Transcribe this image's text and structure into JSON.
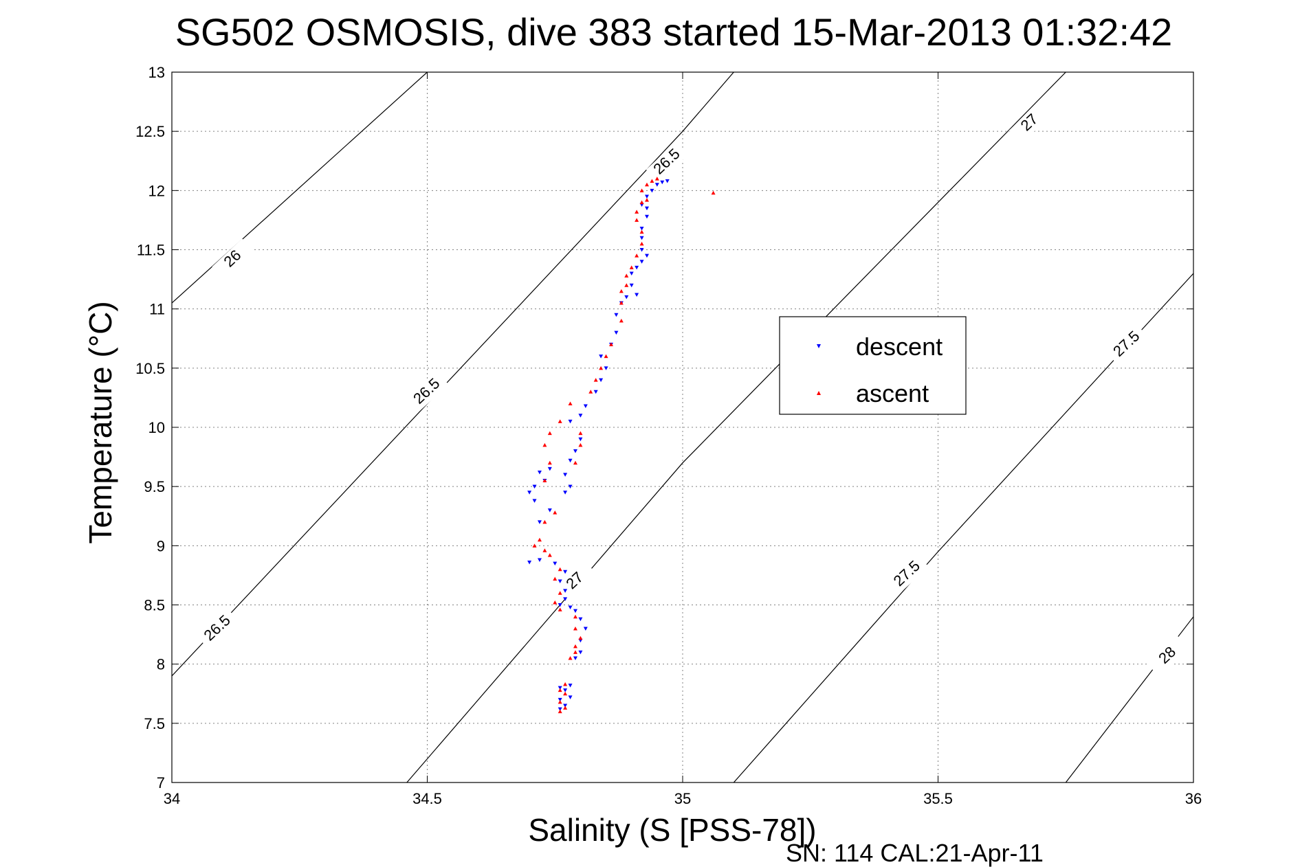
{
  "chart_data": {
    "type": "scatter",
    "title": "SG502 OSMOSIS, dive 383 started 15-Mar-2013 01:32:42",
    "xlabel": "Salinity (S [PSS-78])",
    "ylabel": "Temperature (°C)",
    "footer": "SN: 114  CAL:21-Apr-11",
    "xlim": [
      34,
      36
    ],
    "ylim": [
      7,
      13
    ],
    "xticks": [
      "34",
      "34.5",
      "35",
      "35.5",
      "36"
    ],
    "yticks": [
      "7",
      "7.5",
      "8",
      "8.5",
      "9",
      "9.5",
      "10",
      "10.5",
      "11",
      "11.5",
      "12",
      "12.5",
      "13"
    ],
    "grid": true,
    "legend_position": "center-right",
    "density_contours": [
      {
        "level": "26",
        "points": [
          [
            34.0,
            11.05
          ],
          [
            34.5,
            13.0
          ]
        ]
      },
      {
        "level": "26.5",
        "points": [
          [
            34.0,
            7.9
          ],
          [
            35.0,
            12.5
          ],
          [
            35.1,
            13.0
          ]
        ]
      },
      {
        "level": "27",
        "points": [
          [
            34.46,
            7.0
          ],
          [
            35.0,
            9.7
          ],
          [
            35.5,
            11.9
          ],
          [
            35.75,
            13.0
          ]
        ]
      },
      {
        "level": "27.5",
        "points": [
          [
            35.1,
            7.0
          ],
          [
            35.5,
            8.95
          ],
          [
            36.0,
            11.3
          ]
        ]
      },
      {
        "level": "28",
        "points": [
          [
            35.75,
            7.0
          ],
          [
            36.0,
            8.4
          ]
        ]
      }
    ],
    "contour_labels": [
      {
        "text": "26",
        "x": 34.12,
        "y": 11.42
      },
      {
        "text": "26.5",
        "x": 34.09,
        "y": 8.3
      },
      {
        "text": "26.5",
        "x": 34.5,
        "y": 10.3
      },
      {
        "text": "26.5",
        "x": 34.97,
        "y": 12.24
      },
      {
        "text": "27",
        "x": 34.79,
        "y": 8.7
      },
      {
        "text": "27",
        "x": 35.68,
        "y": 12.57
      },
      {
        "text": "27.5",
        "x": 35.44,
        "y": 8.76
      },
      {
        "text": "27.5",
        "x": 35.87,
        "y": 10.7
      },
      {
        "text": "28",
        "x": 35.95,
        "y": 8.07
      }
    ],
    "series": [
      {
        "name": "descent",
        "color": "#0000ff",
        "marker": "triangle-down",
        "points": [
          [
            34.76,
            7.62
          ],
          [
            34.77,
            7.65
          ],
          [
            34.76,
            7.7
          ],
          [
            34.78,
            7.72
          ],
          [
            34.77,
            7.78
          ],
          [
            34.76,
            7.8
          ],
          [
            34.78,
            7.82
          ],
          [
            34.79,
            8.05
          ],
          [
            34.8,
            8.1
          ],
          [
            34.8,
            8.2
          ],
          [
            34.81,
            8.3
          ],
          [
            34.8,
            8.38
          ],
          [
            34.79,
            8.45
          ],
          [
            34.78,
            8.48
          ],
          [
            34.76,
            8.5
          ],
          [
            34.77,
            8.55
          ],
          [
            34.77,
            8.62
          ],
          [
            34.76,
            8.7
          ],
          [
            34.77,
            8.78
          ],
          [
            34.75,
            8.85
          ],
          [
            34.72,
            8.88
          ],
          [
            34.7,
            8.86
          ],
          [
            34.72,
            9.2
          ],
          [
            34.74,
            9.3
          ],
          [
            34.71,
            9.38
          ],
          [
            34.7,
            9.45
          ],
          [
            34.71,
            9.5
          ],
          [
            34.73,
            9.55
          ],
          [
            34.72,
            9.62
          ],
          [
            34.74,
            9.65
          ],
          [
            34.77,
            9.45
          ],
          [
            34.78,
            9.5
          ],
          [
            34.77,
            9.6
          ],
          [
            34.78,
            9.72
          ],
          [
            34.79,
            9.8
          ],
          [
            34.8,
            9.9
          ],
          [
            34.78,
            10.05
          ],
          [
            34.8,
            10.1
          ],
          [
            34.81,
            10.18
          ],
          [
            34.83,
            10.3
          ],
          [
            34.84,
            10.4
          ],
          [
            34.85,
            10.5
          ],
          [
            34.84,
            10.6
          ],
          [
            34.86,
            10.7
          ],
          [
            34.87,
            10.8
          ],
          [
            34.87,
            10.95
          ],
          [
            34.88,
            11.05
          ],
          [
            34.89,
            11.1
          ],
          [
            34.91,
            11.12
          ],
          [
            34.9,
            11.2
          ],
          [
            34.9,
            11.3
          ],
          [
            34.91,
            11.35
          ],
          [
            34.92,
            11.4
          ],
          [
            34.93,
            11.45
          ],
          [
            34.92,
            11.5
          ],
          [
            34.92,
            11.6
          ],
          [
            34.92,
            11.68
          ],
          [
            34.93,
            11.78
          ],
          [
            34.93,
            11.85
          ],
          [
            34.92,
            11.88
          ],
          [
            34.93,
            11.95
          ],
          [
            34.94,
            12.0
          ],
          [
            34.95,
            12.05
          ],
          [
            34.96,
            12.07
          ],
          [
            34.97,
            12.08
          ]
        ]
      },
      {
        "name": "ascent",
        "color": "#ff0000",
        "marker": "triangle-up",
        "points": [
          [
            34.76,
            7.6
          ],
          [
            34.77,
            7.63
          ],
          [
            34.76,
            7.68
          ],
          [
            34.77,
            7.75
          ],
          [
            34.76,
            7.78
          ],
          [
            34.77,
            7.83
          ],
          [
            34.78,
            8.05
          ],
          [
            34.79,
            8.1
          ],
          [
            34.79,
            8.15
          ],
          [
            34.8,
            8.22
          ],
          [
            34.79,
            8.3
          ],
          [
            34.79,
            8.4
          ],
          [
            34.76,
            8.46
          ],
          [
            34.75,
            8.52
          ],
          [
            34.76,
            8.6
          ],
          [
            34.75,
            8.72
          ],
          [
            34.76,
            8.8
          ],
          [
            34.74,
            8.92
          ],
          [
            34.73,
            8.96
          ],
          [
            34.71,
            9.0
          ],
          [
            34.72,
            9.05
          ],
          [
            34.73,
            9.2
          ],
          [
            34.75,
            9.28
          ],
          [
            34.73,
            9.55
          ],
          [
            34.74,
            9.7
          ],
          [
            34.73,
            9.85
          ],
          [
            34.74,
            9.95
          ],
          [
            34.76,
            10.05
          ],
          [
            34.78,
            10.2
          ],
          [
            34.79,
            9.7
          ],
          [
            34.8,
            9.85
          ],
          [
            34.8,
            9.95
          ],
          [
            34.82,
            10.3
          ],
          [
            34.83,
            10.4
          ],
          [
            34.84,
            10.5
          ],
          [
            34.85,
            10.6
          ],
          [
            34.86,
            10.7
          ],
          [
            34.88,
            10.9
          ],
          [
            34.88,
            11.05
          ],
          [
            34.88,
            11.15
          ],
          [
            34.89,
            11.2
          ],
          [
            34.89,
            11.28
          ],
          [
            34.9,
            11.35
          ],
          [
            34.91,
            11.45
          ],
          [
            34.92,
            11.55
          ],
          [
            34.92,
            11.65
          ],
          [
            34.91,
            11.75
          ],
          [
            34.91,
            11.82
          ],
          [
            34.92,
            11.9
          ],
          [
            34.93,
            11.92
          ],
          [
            34.92,
            12.0
          ],
          [
            34.93,
            12.05
          ],
          [
            34.94,
            12.08
          ],
          [
            34.95,
            12.1
          ],
          [
            35.06,
            11.98
          ]
        ]
      }
    ]
  }
}
